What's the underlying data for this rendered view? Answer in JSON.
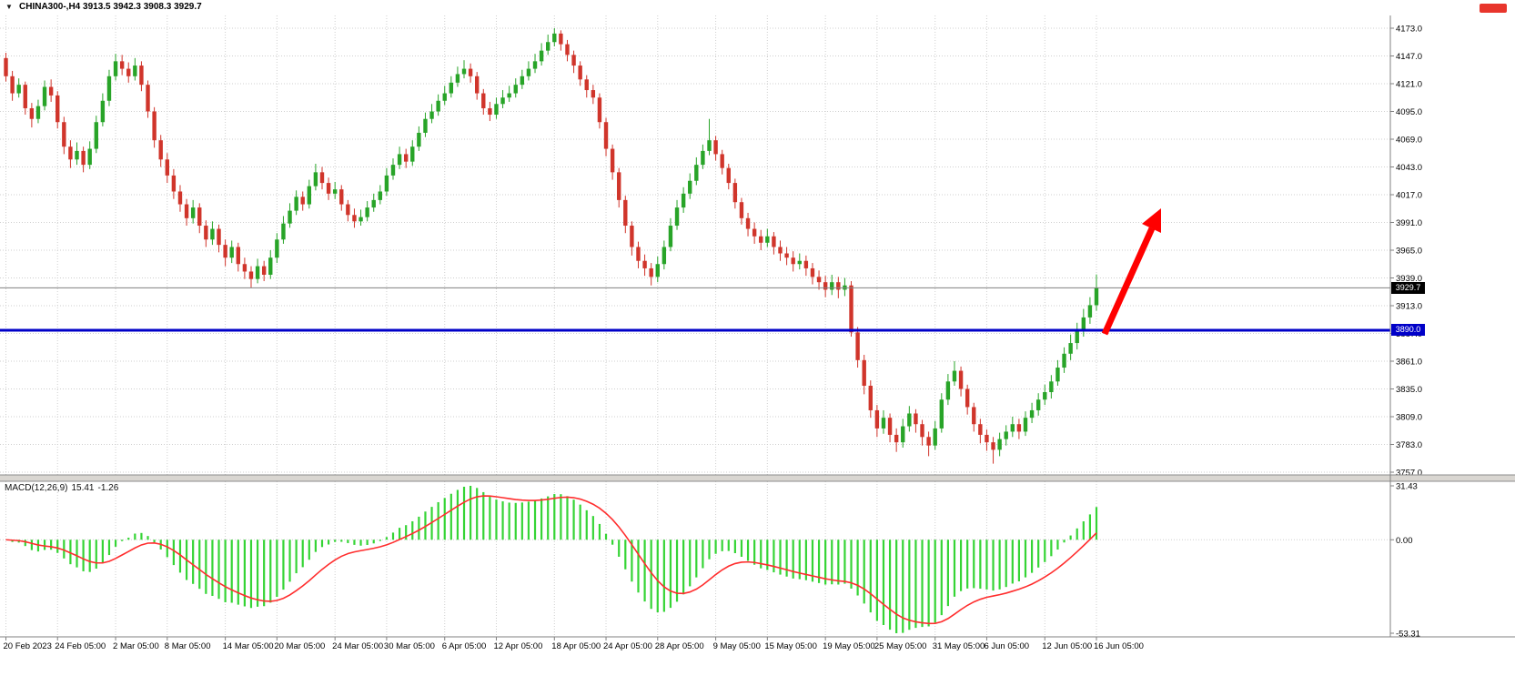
{
  "window": {
    "title": "CHINA300-,H4 3913.5 3942.3 3908.3 3929.7",
    "symbol": "CHINA300-",
    "timeframe": "H4",
    "ohlc": {
      "open": "3913.5",
      "high": "3942.3",
      "low": "3908.3",
      "close": "3929.7"
    }
  },
  "colors": {
    "bull": "#28a428",
    "bear": "#d0352b",
    "macd_bar": "#35d435",
    "macd_signal": "#ff2d2d",
    "hline": "#0000c8",
    "bid_line": "#808080",
    "arrow": "#ff0000",
    "grid": "#cfcfcf",
    "axis_line": "#808080",
    "bid_badge_bg": "#000000",
    "red_marker": "#e8352c"
  },
  "macd_panel": {
    "name": "MACD(12,26,9)",
    "value": "15.41",
    "signal": "-1.26",
    "axis_labels": [
      "31.43",
      "0.00",
      "-53.31"
    ]
  },
  "chart_data": {
    "type": "candlestick",
    "title": "CHINA300-,H4",
    "symbol": "CHINA300",
    "timeframe": "H4",
    "ylim": [
      3757,
      4173
    ],
    "price_ticks": [
      "4173.0",
      "4147.0",
      "4121.0",
      "4095.0",
      "4069.0",
      "4043.0",
      "4017.0",
      "3991.0",
      "3965.0",
      "3939.0",
      "3913.0",
      "3887.0",
      "3861.0",
      "3835.0",
      "3809.0",
      "3783.0",
      "3757.0"
    ],
    "x_labels": [
      "20 Feb 2023",
      "24 Feb 05:00",
      "2 Mar 05:00",
      "8 Mar 05:00",
      "14 Mar 05:00",
      "20 Mar 05:00",
      "24 Mar 05:00",
      "30 Mar 05:00",
      "6 Apr 05:00",
      "12 Apr 05:00",
      "18 Apr 05:00",
      "24 Apr 05:00",
      "28 Apr 05:00",
      "9 May 05:00",
      "15 May 05:00",
      "19 May 05:00",
      "25 May 05:00",
      "31 May 05:00",
      "6 Jun 05:00",
      "12 Jun 05:00",
      "16 Jun 05:00"
    ],
    "bid_price": 3929.7,
    "bid_price_label": "3929.7",
    "hline": 3890.0,
    "hline_label": "3890.0",
    "indicator": {
      "name": "MACD",
      "params": [
        12,
        26,
        9
      ],
      "last_macd": 15.41,
      "last_signal": -1.26,
      "axis_range": [
        -53.31,
        31.43
      ]
    },
    "annotation": {
      "type": "up-trend-arrow",
      "color": "#ff0000"
    },
    "ohlc_series": [
      [
        4145,
        4150,
        4123,
        4128
      ],
      [
        4128,
        4133,
        4105,
        4112
      ],
      [
        4112,
        4126,
        4108,
        4120
      ],
      [
        4120,
        4123,
        4092,
        4098
      ],
      [
        4098,
        4103,
        4080,
        4088
      ],
      [
        4088,
        4106,
        4084,
        4100
      ],
      [
        4100,
        4124,
        4096,
        4118
      ],
      [
        4118,
        4125,
        4104,
        4110
      ],
      [
        4110,
        4114,
        4079,
        4085
      ],
      [
        4085,
        4090,
        4055,
        4062
      ],
      [
        4062,
        4068,
        4042,
        4050
      ],
      [
        4050,
        4066,
        4045,
        4058
      ],
      [
        4058,
        4062,
        4038,
        4045
      ],
      [
        4045,
        4067,
        4041,
        4060
      ],
      [
        4060,
        4091,
        4056,
        4085
      ],
      [
        4085,
        4112,
        4081,
        4105
      ],
      [
        4105,
        4134,
        4100,
        4128
      ],
      [
        4128,
        4149,
        4124,
        4142
      ],
      [
        4142,
        4148,
        4129,
        4135
      ],
      [
        4135,
        4141,
        4122,
        4128
      ],
      [
        4128,
        4145,
        4124,
        4138
      ],
      [
        4138,
        4142,
        4114,
        4120
      ],
      [
        4120,
        4124,
        4089,
        4095
      ],
      [
        4095,
        4099,
        4061,
        4068
      ],
      [
        4068,
        4073,
        4043,
        4050
      ],
      [
        4050,
        4056,
        4028,
        4035
      ],
      [
        4035,
        4041,
        4013,
        4020
      ],
      [
        4020,
        4026,
        4001,
        4008
      ],
      [
        4008,
        4013,
        3988,
        3995
      ],
      [
        3995,
        4012,
        3990,
        4005
      ],
      [
        4005,
        4009,
        3981,
        3988
      ],
      [
        3988,
        3993,
        3968,
        3975
      ],
      [
        3975,
        3992,
        3970,
        3985
      ],
      [
        3985,
        3989,
        3963,
        3970
      ],
      [
        3970,
        3975,
        3950,
        3958
      ],
      [
        3958,
        3974,
        3953,
        3968
      ],
      [
        3968,
        3972,
        3945,
        3952
      ],
      [
        3952,
        3958,
        3938,
        3945
      ],
      [
        3945,
        3950,
        3930,
        3938
      ],
      [
        3938,
        3957,
        3934,
        3950
      ],
      [
        3950,
        3955,
        3936,
        3942
      ],
      [
        3942,
        3965,
        3938,
        3958
      ],
      [
        3958,
        3981,
        3953,
        3975
      ],
      [
        3975,
        3997,
        3971,
        3990
      ],
      [
        3990,
        4009,
        3986,
        4002
      ],
      [
        4002,
        4021,
        3998,
        4015
      ],
      [
        4015,
        4020,
        4002,
        4008
      ],
      [
        4008,
        4031,
        4004,
        4025
      ],
      [
        4025,
        4046,
        4021,
        4038
      ],
      [
        4038,
        4043,
        4022,
        4028
      ],
      [
        4028,
        4033,
        4012,
        4018
      ],
      [
        4018,
        4029,
        4013,
        4022
      ],
      [
        4022,
        4026,
        4002,
        4008
      ],
      [
        4008,
        4012,
        3992,
        3998
      ],
      [
        3998,
        4004,
        3986,
        3992
      ],
      [
        3992,
        4003,
        3988,
        3996
      ],
      [
        3996,
        4011,
        3992,
        4005
      ],
      [
        4005,
        4018,
        4001,
        4012
      ],
      [
        4012,
        4026,
        4008,
        4020
      ],
      [
        4020,
        4042,
        4016,
        4035
      ],
      [
        4035,
        4051,
        4031,
        4045
      ],
      [
        4045,
        4062,
        4041,
        4055
      ],
      [
        4055,
        4060,
        4042,
        4048
      ],
      [
        4048,
        4068,
        4044,
        4062
      ],
      [
        4062,
        4081,
        4058,
        4075
      ],
      [
        4075,
        4094,
        4071,
        4088
      ],
      [
        4088,
        4102,
        4084,
        4095
      ],
      [
        4095,
        4111,
        4091,
        4105
      ],
      [
        4105,
        4119,
        4101,
        4112
      ],
      [
        4112,
        4128,
        4108,
        4122
      ],
      [
        4122,
        4137,
        4118,
        4130
      ],
      [
        4130,
        4143,
        4126,
        4135
      ],
      [
        4135,
        4140,
        4122,
        4128
      ],
      [
        4128,
        4132,
        4106,
        4112
      ],
      [
        4112,
        4116,
        4092,
        4098
      ],
      [
        4098,
        4104,
        4086,
        4092
      ],
      [
        4092,
        4108,
        4088,
        4102
      ],
      [
        4102,
        4115,
        4098,
        4108
      ],
      [
        4108,
        4119,
        4104,
        4112
      ],
      [
        4112,
        4126,
        4108,
        4120
      ],
      [
        4120,
        4134,
        4116,
        4128
      ],
      [
        4128,
        4142,
        4124,
        4135
      ],
      [
        4135,
        4149,
        4131,
        4142
      ],
      [
        4142,
        4159,
        4138,
        4152
      ],
      [
        4152,
        4167,
        4148,
        4160
      ],
      [
        4160,
        4173,
        4156,
        4168
      ],
      [
        4168,
        4171,
        4152,
        4158
      ],
      [
        4158,
        4162,
        4142,
        4148
      ],
      [
        4148,
        4152,
        4131,
        4138
      ],
      [
        4138,
        4142,
        4119,
        4125
      ],
      [
        4125,
        4129,
        4108,
        4115
      ],
      [
        4115,
        4120,
        4102,
        4108
      ],
      [
        4108,
        4112,
        4079,
        4085
      ],
      [
        4085,
        4089,
        4053,
        4060
      ],
      [
        4060,
        4064,
        4031,
        4038
      ],
      [
        4038,
        4042,
        4005,
        4012
      ],
      [
        4012,
        4016,
        3981,
        3988
      ],
      [
        3988,
        3992,
        3960,
        3968
      ],
      [
        3968,
        3973,
        3948,
        3955
      ],
      [
        3955,
        3961,
        3941,
        3948
      ],
      [
        3948,
        3953,
        3932,
        3940
      ],
      [
        3940,
        3959,
        3935,
        3952
      ],
      [
        3952,
        3974,
        3947,
        3968
      ],
      [
        3968,
        3995,
        3964,
        3988
      ],
      [
        3988,
        4012,
        3984,
        4005
      ],
      [
        4005,
        4024,
        4000,
        4018
      ],
      [
        4018,
        4037,
        4013,
        4030
      ],
      [
        4030,
        4052,
        4026,
        4045
      ],
      [
        4045,
        4064,
        4041,
        4058
      ],
      [
        4058,
        4088,
        4054,
        4068
      ],
      [
        4068,
        4072,
        4049,
        4055
      ],
      [
        4055,
        4059,
        4036,
        4042
      ],
      [
        4042,
        4046,
        4022,
        4028
      ],
      [
        4028,
        4032,
        4004,
        4010
      ],
      [
        4010,
        4014,
        3989,
        3995
      ],
      [
        3995,
        4000,
        3978,
        3985
      ],
      [
        3985,
        3991,
        3971,
        3978
      ],
      [
        3978,
        3984,
        3965,
        3972
      ],
      [
        3972,
        3985,
        3968,
        3978
      ],
      [
        3978,
        3982,
        3961,
        3968
      ],
      [
        3968,
        3974,
        3955,
        3962
      ],
      [
        3962,
        3968,
        3951,
        3958
      ],
      [
        3958,
        3964,
        3945,
        3952
      ],
      [
        3952,
        3962,
        3947,
        3955
      ],
      [
        3955,
        3960,
        3941,
        3948
      ],
      [
        3948,
        3953,
        3933,
        3940
      ],
      [
        3940,
        3946,
        3928,
        3935
      ],
      [
        3935,
        3941,
        3921,
        3928
      ],
      [
        3928,
        3942,
        3923,
        3935
      ],
      [
        3935,
        3940,
        3920,
        3928
      ],
      [
        3928,
        3939,
        3922,
        3932
      ],
      [
        3932,
        3936,
        3884,
        3888
      ],
      [
        3888,
        3893,
        3855,
        3862
      ],
      [
        3862,
        3867,
        3830,
        3838
      ],
      [
        3838,
        3843,
        3808,
        3815
      ],
      [
        3815,
        3820,
        3790,
        3798
      ],
      [
        3798,
        3815,
        3793,
        3808
      ],
      [
        3808,
        3812,
        3785,
        3792
      ],
      [
        3792,
        3798,
        3776,
        3785
      ],
      [
        3785,
        3807,
        3780,
        3800
      ],
      [
        3800,
        3819,
        3795,
        3812
      ],
      [
        3812,
        3816,
        3794,
        3802
      ],
      [
        3802,
        3806,
        3782,
        3790
      ],
      [
        3790,
        3795,
        3772,
        3782
      ],
      [
        3782,
        3805,
        3778,
        3798
      ],
      [
        3798,
        3831,
        3794,
        3825
      ],
      [
        3825,
        3849,
        3820,
        3842
      ],
      [
        3842,
        3861,
        3838,
        3852
      ],
      [
        3852,
        3856,
        3828,
        3835
      ],
      [
        3835,
        3839,
        3811,
        3818
      ],
      [
        3818,
        3822,
        3795,
        3802
      ],
      [
        3802,
        3807,
        3784,
        3792
      ],
      [
        3792,
        3797,
        3777,
        3785
      ],
      [
        3785,
        3790,
        3765,
        3778
      ],
      [
        3778,
        3794,
        3772,
        3788
      ],
      [
        3788,
        3801,
        3782,
        3795
      ],
      [
        3795,
        3809,
        3790,
        3802
      ],
      [
        3802,
        3807,
        3788,
        3795
      ],
      [
        3795,
        3814,
        3791,
        3808
      ],
      [
        3808,
        3822,
        3803,
        3815
      ],
      [
        3815,
        3831,
        3810,
        3825
      ],
      [
        3825,
        3839,
        3820,
        3832
      ],
      [
        3832,
        3848,
        3826,
        3842
      ],
      [
        3842,
        3862,
        3838,
        3855
      ],
      [
        3855,
        3874,
        3850,
        3868
      ],
      [
        3868,
        3886,
        3862,
        3878
      ],
      [
        3878,
        3897,
        3872,
        3890
      ],
      [
        3890,
        3910,
        3884,
        3902
      ],
      [
        3902,
        3921,
        3896,
        3913.5
      ],
      [
        3913.5,
        3942.3,
        3908.3,
        3929.7
      ]
    ]
  }
}
